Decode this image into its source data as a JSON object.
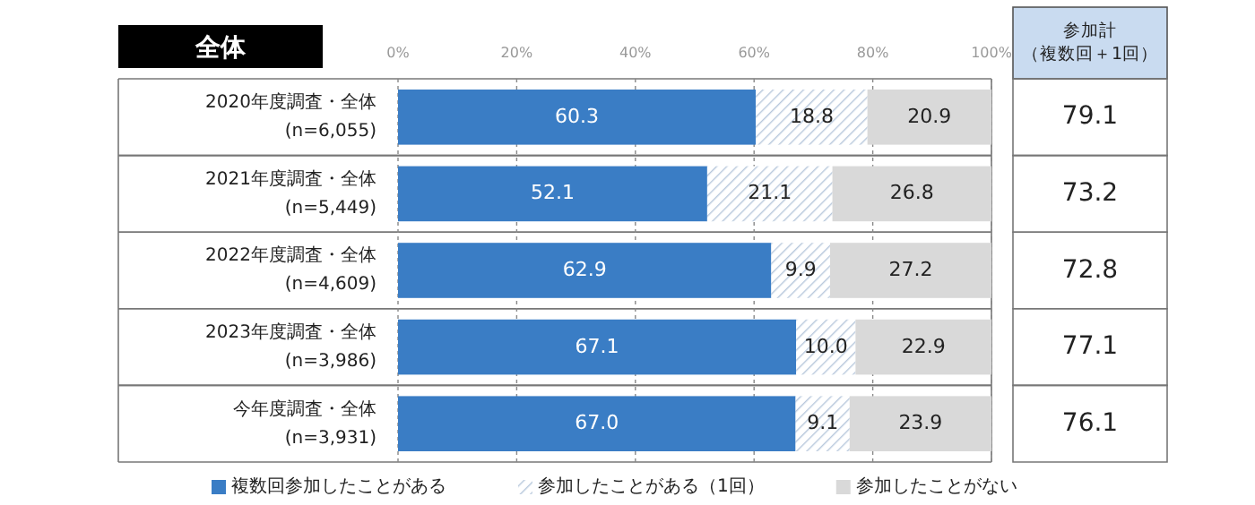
{
  "chart_data": [
    {
      "type": "bar",
      "orientation": "horizontal",
      "stacked": true,
      "title": "全体",
      "categories": [
        "2020年度調査・全体\n(n=6,055)",
        "2021年度調査・全体\n(n=5,449)",
        "2022年度調査・全体\n(n=4,609)",
        "2023年度調査・全体\n(n=3,986)",
        "今年度調査・全体\n(n=3,931)"
      ],
      "series": [
        {
          "name": "複数回参加したことがある",
          "color": "#3a7dc5",
          "values": [
            60.3,
            52.1,
            62.9,
            67.1,
            67.0
          ],
          "value_labels": [
            "60.3",
            "52.1",
            "62.9",
            "67.1",
            "67.0"
          ]
        },
        {
          "name": "参加したことがある（1回）",
          "color": "#b8c8dc",
          "values": [
            18.8,
            21.1,
            9.9,
            10.0,
            9.1
          ],
          "value_labels": [
            "18.8",
            "21.1",
            "9.9",
            "10.0",
            "9.1"
          ]
        },
        {
          "name": "参加したことがない",
          "color": "#d9d9d9",
          "values": [
            20.9,
            26.8,
            27.2,
            22.9,
            23.9
          ],
          "value_labels": [
            "20.9",
            "26.8",
            "27.2",
            "22.9",
            "23.9"
          ]
        }
      ],
      "xlim": [
        0,
        100
      ],
      "xticks": [
        {
          "value": 0,
          "label": "0%"
        },
        {
          "value": 20,
          "label": "20%"
        },
        {
          "value": 40,
          "label": "40%"
        },
        {
          "value": 60,
          "label": "60%"
        },
        {
          "value": 80,
          "label": "80%"
        },
        {
          "value": 100,
          "label": "100%"
        }
      ],
      "grid": "x",
      "legend": "bottom"
    },
    {
      "type": "other",
      "title": "参加計（複数回＋1回）",
      "values": [
        79.1,
        73.2,
        72.8,
        77.1,
        76.1
      ],
      "data_labels": true
    }
  ]
}
